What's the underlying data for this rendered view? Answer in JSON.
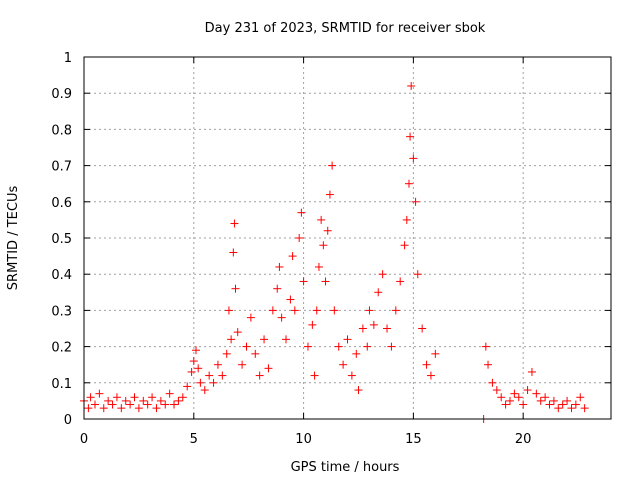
{
  "chart_data": {
    "type": "scatter",
    "title": "Day 231 of 2023, SRMTID for receiver sbok",
    "xlabel": "GPS time / hours",
    "ylabel": "SRMTID / TECUs",
    "xlim": [
      0,
      24
    ],
    "ylim": [
      0,
      1
    ],
    "xticks": [
      0,
      5,
      10,
      15,
      20
    ],
    "xtick_labels": [
      "0",
      "5",
      "10",
      "15",
      "20"
    ],
    "yticks": [
      0,
      0.1,
      0.2,
      0.3,
      0.4,
      0.5,
      0.6,
      0.7,
      0.8,
      0.9,
      1
    ],
    "ytick_labels": [
      "0",
      "0.1",
      "0.2",
      "0.3",
      "0.4",
      "0.5",
      "0.6",
      "0.7",
      "0.8",
      "0.9",
      "1"
    ],
    "grid": true,
    "marker": "+",
    "color": "#ff0000",
    "series": [
      {
        "name": "SRMTID",
        "points": [
          [
            0.0,
            0.05
          ],
          [
            0.2,
            0.03
          ],
          [
            0.3,
            0.06
          ],
          [
            0.5,
            0.04
          ],
          [
            0.7,
            0.07
          ],
          [
            0.9,
            0.03
          ],
          [
            1.1,
            0.05
          ],
          [
            1.3,
            0.04
          ],
          [
            1.5,
            0.06
          ],
          [
            1.7,
            0.03
          ],
          [
            1.9,
            0.05
          ],
          [
            2.1,
            0.04
          ],
          [
            2.3,
            0.06
          ],
          [
            2.5,
            0.03
          ],
          [
            2.7,
            0.05
          ],
          [
            2.9,
            0.04
          ],
          [
            3.1,
            0.06
          ],
          [
            3.3,
            0.03
          ],
          [
            3.5,
            0.05
          ],
          [
            3.7,
            0.04
          ],
          [
            3.9,
            0.07
          ],
          [
            4.1,
            0.04
          ],
          [
            4.3,
            0.05
          ],
          [
            4.5,
            0.06
          ],
          [
            4.7,
            0.09
          ],
          [
            4.9,
            0.13
          ],
          [
            5.0,
            0.16
          ],
          [
            5.1,
            0.19
          ],
          [
            5.2,
            0.14
          ],
          [
            5.3,
            0.1
          ],
          [
            5.5,
            0.08
          ],
          [
            5.7,
            0.12
          ],
          [
            5.9,
            0.1
          ],
          [
            6.1,
            0.15
          ],
          [
            6.3,
            0.12
          ],
          [
            6.5,
            0.18
          ],
          [
            6.6,
            0.3
          ],
          [
            6.7,
            0.22
          ],
          [
            6.8,
            0.46
          ],
          [
            6.85,
            0.54
          ],
          [
            6.9,
            0.36
          ],
          [
            7.0,
            0.24
          ],
          [
            7.2,
            0.15
          ],
          [
            7.4,
            0.2
          ],
          [
            7.6,
            0.28
          ],
          [
            7.8,
            0.18
          ],
          [
            8.0,
            0.12
          ],
          [
            8.2,
            0.22
          ],
          [
            8.4,
            0.14
          ],
          [
            8.6,
            0.3
          ],
          [
            8.8,
            0.36
          ],
          [
            8.9,
            0.42
          ],
          [
            9.0,
            0.28
          ],
          [
            9.2,
            0.22
          ],
          [
            9.4,
            0.33
          ],
          [
            9.5,
            0.45
          ],
          [
            9.6,
            0.3
          ],
          [
            9.8,
            0.5
          ],
          [
            9.9,
            0.57
          ],
          [
            10.0,
            0.38
          ],
          [
            10.2,
            0.2
          ],
          [
            10.4,
            0.26
          ],
          [
            10.5,
            0.12
          ],
          [
            10.6,
            0.3
          ],
          [
            10.7,
            0.42
          ],
          [
            10.8,
            0.55
          ],
          [
            10.9,
            0.48
          ],
          [
            11.0,
            0.38
          ],
          [
            11.1,
            0.52
          ],
          [
            11.2,
            0.62
          ],
          [
            11.3,
            0.7
          ],
          [
            11.4,
            0.3
          ],
          [
            11.6,
            0.2
          ],
          [
            11.8,
            0.15
          ],
          [
            12.0,
            0.22
          ],
          [
            12.2,
            0.12
          ],
          [
            12.4,
            0.18
          ],
          [
            12.5,
            0.08
          ],
          [
            12.7,
            0.25
          ],
          [
            12.9,
            0.2
          ],
          [
            13.0,
            0.3
          ],
          [
            13.2,
            0.26
          ],
          [
            13.4,
            0.35
          ],
          [
            13.6,
            0.4
          ],
          [
            13.8,
            0.25
          ],
          [
            14.0,
            0.2
          ],
          [
            14.2,
            0.3
          ],
          [
            14.4,
            0.38
          ],
          [
            14.6,
            0.48
          ],
          [
            14.7,
            0.55
          ],
          [
            14.8,
            0.65
          ],
          [
            14.85,
            0.78
          ],
          [
            14.9,
            0.92
          ],
          [
            15.0,
            0.72
          ],
          [
            15.1,
            0.6
          ],
          [
            15.2,
            0.4
          ],
          [
            15.4,
            0.25
          ],
          [
            15.6,
            0.15
          ],
          [
            15.8,
            0.12
          ],
          [
            16.0,
            0.18
          ],
          [
            18.2,
            0.0
          ],
          [
            18.3,
            0.2
          ],
          [
            18.4,
            0.15
          ],
          [
            18.6,
            0.1
          ],
          [
            18.8,
            0.08
          ],
          [
            19.0,
            0.06
          ],
          [
            19.2,
            0.04
          ],
          [
            19.4,
            0.05
          ],
          [
            19.6,
            0.07
          ],
          [
            19.8,
            0.06
          ],
          [
            20.0,
            0.04
          ],
          [
            20.2,
            0.08
          ],
          [
            20.4,
            0.13
          ],
          [
            20.6,
            0.07
          ],
          [
            20.8,
            0.05
          ],
          [
            21.0,
            0.06
          ],
          [
            21.2,
            0.04
          ],
          [
            21.4,
            0.05
          ],
          [
            21.6,
            0.03
          ],
          [
            21.8,
            0.04
          ],
          [
            22.0,
            0.05
          ],
          [
            22.2,
            0.03
          ],
          [
            22.4,
            0.04
          ],
          [
            22.6,
            0.06
          ],
          [
            22.8,
            0.03
          ]
        ]
      }
    ]
  }
}
